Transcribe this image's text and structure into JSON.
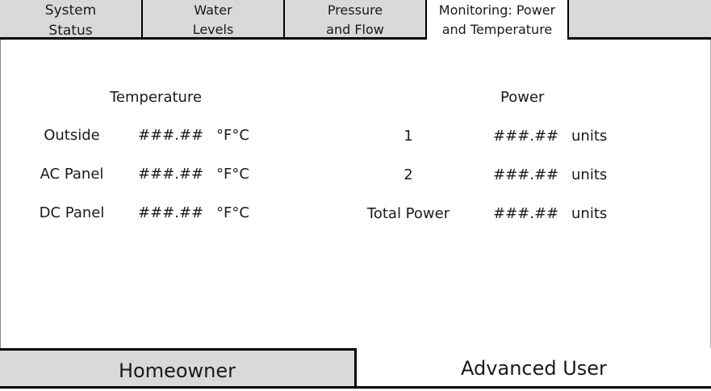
{
  "tabs": {
    "system_status": "System\nStatus",
    "water_levels": "Water\nLevels",
    "pressure_flow": "Pressure\nand Flow",
    "monitoring": "Monitoring: Power\nand Temperature"
  },
  "temperature": {
    "heading": "Temperature",
    "rows": [
      {
        "label": "Outside",
        "value": "###.##",
        "unit": "°F°C"
      },
      {
        "label": "AC Panel",
        "value": "###.##",
        "unit": "°F°C"
      },
      {
        "label": "DC Panel",
        "value": "###.##",
        "unit": "°F°C"
      }
    ]
  },
  "power": {
    "heading": "Power",
    "rows": [
      {
        "label": "1",
        "value": "###.##",
        "unit": "units"
      },
      {
        "label": "2",
        "value": "###.##",
        "unit": "units"
      },
      {
        "label": "Total Power",
        "value": "###.##",
        "unit": "units"
      }
    ]
  },
  "footer": {
    "homeowner": "Homeowner",
    "advanced_user": "Advanced User"
  }
}
